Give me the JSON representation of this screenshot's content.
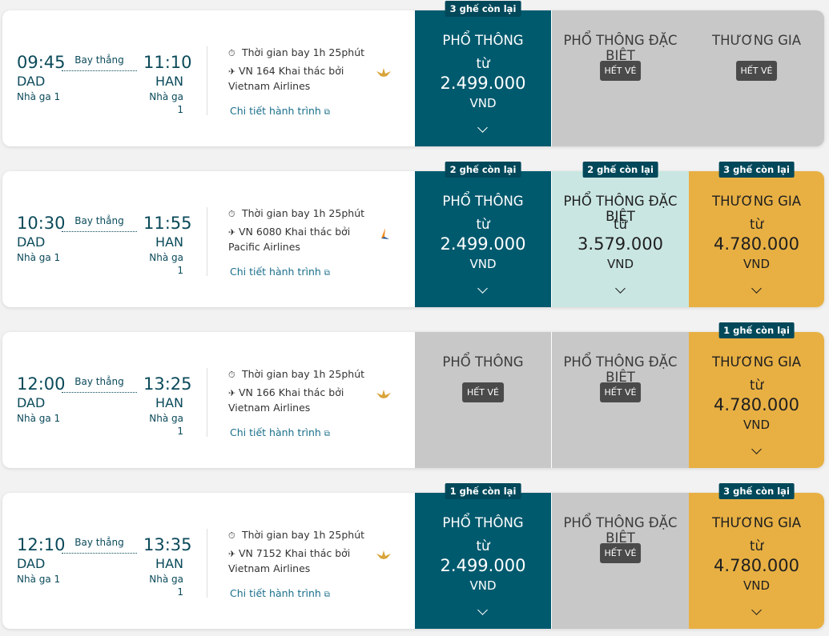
{
  "flights": [
    {
      "dep_time": "09:45",
      "dep_code": "DAD",
      "dep_terminal": "Nhà ga 1",
      "arr_time": "11:10",
      "arr_code": "HAN",
      "arr_terminal": "Nhà ga 1",
      "stop_label": "Bay thẳng",
      "duration": "Thời gian bay 1h 25phút",
      "flight_no": "VN 164 Khai thác bởi Vietnam Airlines",
      "detail_link": "Chi tiết hành trình",
      "airline_logo": "vietnam-airlines-lotus",
      "fares": [
        {
          "class": "PHỔ THÔNG",
          "from": "từ",
          "price": "2.499.000",
          "currency": "VND",
          "seats": "3 ghế còn lại",
          "sold_out": "",
          "state": "selected"
        },
        {
          "class": "PHỔ THÔNG ĐẶC BIỆT",
          "from": "",
          "price": "",
          "currency": "",
          "seats": "",
          "sold_out": "HẾT VÉ",
          "state": "soldout"
        },
        {
          "class": "THƯƠNG GIA",
          "from": "",
          "price": "",
          "currency": "",
          "seats": "",
          "sold_out": "HẾT VÉ",
          "state": "soldout"
        }
      ]
    },
    {
      "dep_time": "10:30",
      "dep_code": "DAD",
      "dep_terminal": "Nhà ga 1",
      "arr_time": "11:55",
      "arr_code": "HAN",
      "arr_terminal": "Nhà ga 1",
      "stop_label": "Bay thẳng",
      "duration": "Thời gian bay 1h 25phút",
      "flight_no": "VN 6080 Khai thác bởi Pacific Airlines",
      "detail_link": "Chi tiết hành trình",
      "airline_logo": "pacific-airlines",
      "fares": [
        {
          "class": "PHỔ THÔNG",
          "from": "từ",
          "price": "2.499.000",
          "currency": "VND",
          "seats": "2 ghế còn lại",
          "sold_out": "",
          "state": "selected"
        },
        {
          "class": "PHỔ THÔNG ĐẶC BIỆT",
          "from": "từ",
          "price": "3.579.000",
          "currency": "VND",
          "seats": "2 ghế còn lại",
          "sold_out": "",
          "state": "premium"
        },
        {
          "class": "THƯƠNG GIA",
          "from": "từ",
          "price": "4.780.000",
          "currency": "VND",
          "seats": "3 ghế còn lại",
          "sold_out": "",
          "state": "business"
        }
      ]
    },
    {
      "dep_time": "12:00",
      "dep_code": "DAD",
      "dep_terminal": "Nhà ga 1",
      "arr_time": "13:25",
      "arr_code": "HAN",
      "arr_terminal": "Nhà ga 1",
      "stop_label": "Bay thẳng",
      "duration": "Thời gian bay 1h 25phút",
      "flight_no": "VN 166 Khai thác bởi Vietnam Airlines",
      "detail_link": "Chi tiết hành trình",
      "airline_logo": "vietnam-airlines-lotus",
      "fares": [
        {
          "class": "PHỔ THÔNG",
          "from": "",
          "price": "",
          "currency": "",
          "seats": "",
          "sold_out": "HẾT VÉ",
          "state": "soldout"
        },
        {
          "class": "PHỔ THÔNG ĐẶC BIỆT",
          "from": "",
          "price": "",
          "currency": "",
          "seats": "",
          "sold_out": "HẾT VÉ",
          "state": "soldout"
        },
        {
          "class": "THƯƠNG GIA",
          "from": "từ",
          "price": "4.780.000",
          "currency": "VND",
          "seats": "1 ghế còn lại",
          "sold_out": "",
          "state": "business"
        }
      ]
    },
    {
      "dep_time": "12:10",
      "dep_code": "DAD",
      "dep_terminal": "Nhà ga 1",
      "arr_time": "13:35",
      "arr_code": "HAN",
      "arr_terminal": "Nhà ga 1",
      "stop_label": "Bay thẳng",
      "duration": "Thời gian bay 1h 25phút",
      "flight_no": "VN 7152 Khai thác bởi Vietnam Airlines",
      "detail_link": "Chi tiết hành trình",
      "airline_logo": "vietnam-airlines-lotus",
      "fares": [
        {
          "class": "PHỔ THÔNG",
          "from": "từ",
          "price": "2.499.000",
          "currency": "VND",
          "seats": "1 ghế còn lại",
          "sold_out": "",
          "state": "selected"
        },
        {
          "class": "PHỔ THÔNG ĐẶC BIỆT",
          "from": "",
          "price": "",
          "currency": "",
          "seats": "",
          "sold_out": "HẾT VÉ",
          "state": "soldout"
        },
        {
          "class": "THƯƠNG GIA",
          "from": "từ",
          "price": "4.780.000",
          "currency": "VND",
          "seats": "3 ghế còn lại",
          "sold_out": "",
          "state": "business"
        }
      ]
    }
  ],
  "colors": {
    "selected": "#005a6e",
    "premium": "#c9e6e2",
    "business": "#e8b043",
    "soldout": "#c8c8c8",
    "badge": "#00485a"
  }
}
